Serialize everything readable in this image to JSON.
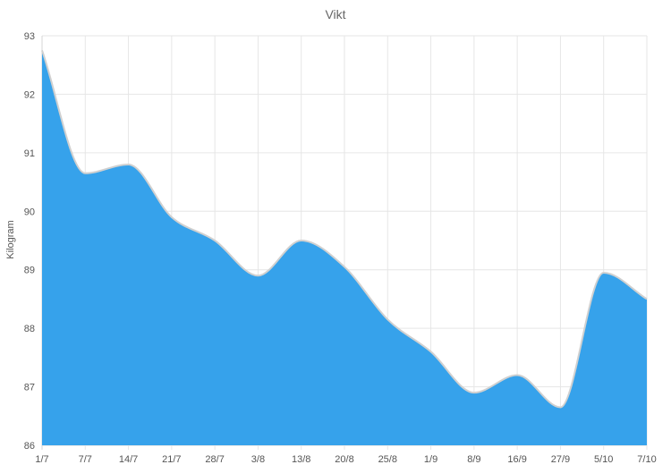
{
  "chart_data": {
    "type": "area",
    "title": "Vikt",
    "xlabel": "",
    "ylabel": "Kilogram",
    "categories": [
      "1/7",
      "7/7",
      "14/7",
      "21/7",
      "28/7",
      "3/8",
      "13/8",
      "20/8",
      "25/8",
      "1/9",
      "8/9",
      "16/9",
      "27/9",
      "5/10",
      "7/10"
    ],
    "ylim": [
      86,
      93
    ],
    "yticks": [
      86,
      87,
      88,
      89,
      90,
      91,
      92,
      93
    ],
    "grid": true,
    "series": [
      {
        "values": [
          92.75,
          90.65,
          90.8,
          89.9,
          89.5,
          88.9,
          89.5,
          89.05,
          88.15,
          87.6,
          86.9,
          87.2,
          86.65,
          88.95,
          88.5
        ]
      }
    ],
    "colors": {
      "fill": "#36a2eb",
      "line": "#d0d0d0"
    }
  }
}
